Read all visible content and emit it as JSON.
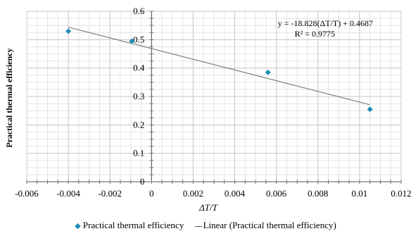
{
  "chart_data": {
    "type": "scatter",
    "xlabel": "ΔT/T",
    "ylabel": "Practical thermal efficiency",
    "xlim": [
      -0.006,
      0.012
    ],
    "ylim": [
      0,
      0.6
    ],
    "x_ticks": [
      "-0.006",
      "-0.004",
      "-0.002",
      "0",
      "0.002",
      "0.004",
      "0.006",
      "0.008",
      "0.01",
      "0.012"
    ],
    "y_ticks": [
      "0",
      "0.1",
      "0.2",
      "0.3",
      "0.4",
      "0.5",
      "0.6"
    ],
    "grid": true,
    "legend_position": "bottom",
    "series": [
      {
        "name": "Practical thermal efficiency",
        "kind": "scatter",
        "color": "#1f8db5",
        "x": [
          -0.004,
          -0.00095,
          0.0056,
          0.0105
        ],
        "y": [
          0.53,
          0.495,
          0.385,
          0.255
        ]
      },
      {
        "name": "Linear (Practical thermal efficiency)",
        "kind": "trendline",
        "color": "#7f7f7f",
        "slope": -18.828,
        "intercept": 0.4687
      }
    ],
    "annotations": {
      "equation": "y = -18.828(ΔT/T) + 0.4687",
      "r_squared": "R² = 0.9775"
    }
  }
}
